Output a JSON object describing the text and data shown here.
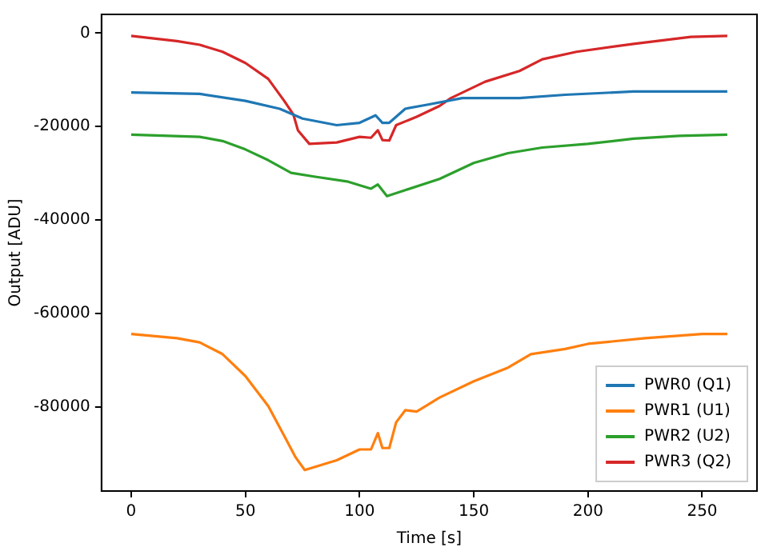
{
  "chart_data": {
    "type": "line",
    "xlabel": "Time [s]",
    "ylabel": "Output [ADU]",
    "xlim": [
      -13,
      274
    ],
    "ylim": [
      -98000,
      4000
    ],
    "xticks": [
      0,
      50,
      100,
      150,
      200,
      250
    ],
    "yticks": [
      0,
      -20000,
      -40000,
      -60000,
      -80000
    ],
    "grid": false,
    "legend": "bottom right",
    "marker": "none",
    "line_style": "solid",
    "series": [
      {
        "name": "PWR0 (Q1)",
        "color": "#1f77b4",
        "x": [
          0,
          30,
          50,
          65,
          75,
          90,
          100,
          107,
          110,
          113,
          120,
          130,
          145,
          170,
          190,
          220,
          261
        ],
        "values": [
          -12700,
          -13000,
          -14500,
          -16200,
          -18300,
          -19700,
          -19200,
          -17600,
          -19200,
          -19200,
          -16200,
          -15300,
          -13900,
          -13900,
          -13200,
          -12500,
          -12500
        ]
      },
      {
        "name": "PWR1 (U1)",
        "color": "#ff7f0e",
        "x": [
          0,
          20,
          30,
          40,
          50,
          60,
          67,
          72,
          76,
          90,
          100,
          105,
          108,
          110,
          113,
          116,
          120,
          125,
          135,
          150,
          165,
          175,
          190,
          200,
          225,
          250,
          261
        ],
        "values": [
          -64400,
          -65300,
          -66200,
          -68700,
          -73400,
          -79800,
          -86200,
          -90800,
          -93500,
          -91400,
          -89100,
          -89100,
          -85600,
          -88800,
          -88800,
          -83300,
          -80700,
          -81000,
          -78000,
          -74500,
          -71600,
          -68700,
          -67600,
          -66500,
          -65300,
          -64400,
          -64400
        ]
      },
      {
        "name": "PWR2 (U2)",
        "color": "#2ca02c",
        "x": [
          0,
          30,
          40,
          50,
          60,
          70,
          80,
          95,
          105,
          108,
          112,
          120,
          135,
          150,
          165,
          180,
          200,
          220,
          240,
          261
        ],
        "values": [
          -21750,
          -22200,
          -23100,
          -24900,
          -27200,
          -29900,
          -30700,
          -31800,
          -33300,
          -32400,
          -34900,
          -33600,
          -31200,
          -27800,
          -25700,
          -24500,
          -23700,
          -22600,
          -22000,
          -21750
        ]
      },
      {
        "name": "PWR3 (Q2)",
        "color": "#d62728",
        "x": [
          0,
          20,
          30,
          40,
          50,
          60,
          67,
          71,
          73,
          78,
          90,
          100,
          105,
          108,
          110,
          113,
          116,
          125,
          135,
          140,
          155,
          170,
          180,
          195,
          220,
          245,
          261
        ],
        "values": [
          -600,
          -1700,
          -2500,
          -4000,
          -6400,
          -9800,
          -14500,
          -17400,
          -20800,
          -23700,
          -23400,
          -22200,
          -22400,
          -20800,
          -22900,
          -23000,
          -19700,
          -17900,
          -15600,
          -13900,
          -10400,
          -8100,
          -5600,
          -4000,
          -2300,
          -800,
          -600
        ]
      }
    ]
  }
}
